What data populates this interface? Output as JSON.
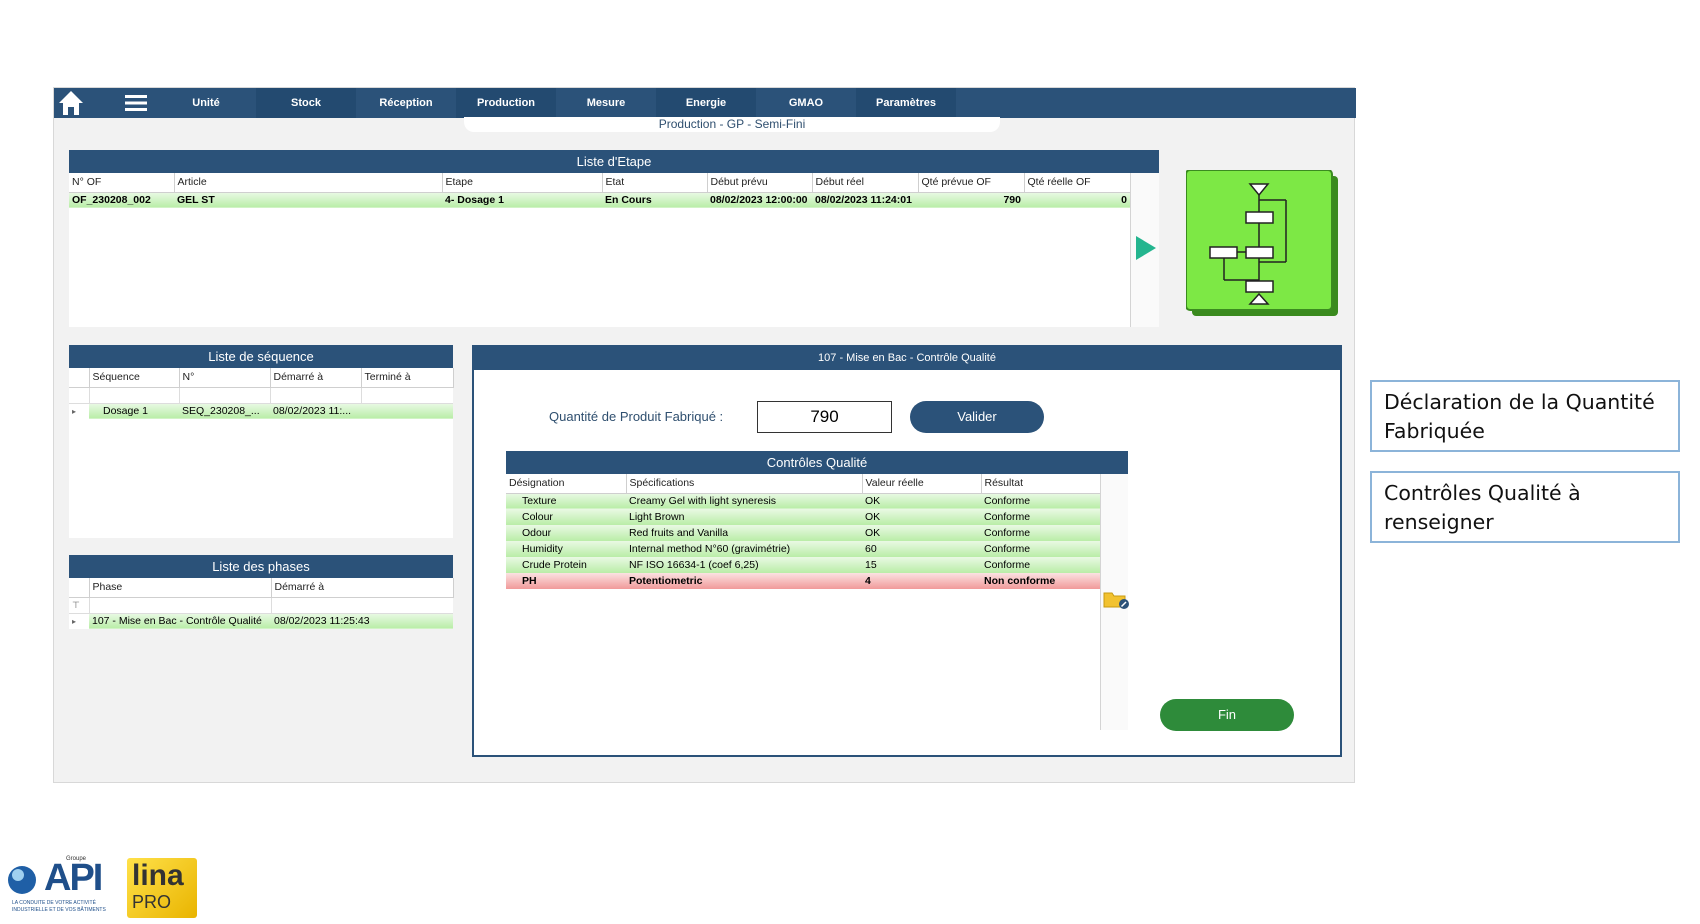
{
  "nav": {
    "items": [
      "Unité",
      "Stock",
      "Réception",
      "Production",
      "Mesure",
      "Energie",
      "GMAO",
      "Paramètres"
    ]
  },
  "subtitle": "Production - GP - Semi-Fini",
  "etape": {
    "title": "Liste d'Etape",
    "columns": [
      "N° OF",
      "Article",
      "Etape",
      "Etat",
      "Début prévu",
      "Début réel",
      "Qté prévue OF",
      "Qté réelle OF"
    ],
    "row": {
      "of": "OF_230208_002",
      "article": "GEL ST",
      "etape": "4- Dosage 1",
      "etat": "En Cours",
      "debut_prevu": "08/02/2023 12:00:00",
      "debut_reel": "08/02/2023 11:24:01",
      "qte_prevue": "790",
      "qte_reelle": "0"
    }
  },
  "sequence": {
    "title": "Liste de séquence",
    "columns": [
      "Séquence",
      "N°",
      "Démarré à",
      "Terminé à"
    ],
    "row": {
      "sequence": "Dosage 1",
      "numero": "SEQ_230208_...",
      "demarre": "08/02/2023 11:...",
      "termine": ""
    }
  },
  "phases": {
    "title": "Liste des phases",
    "columns": [
      "Phase",
      "Démarré à"
    ],
    "row": {
      "phase": "107 - Mise en Bac - Contrôle Qualité",
      "demarre": "08/02/2023 11:25:43"
    }
  },
  "control": {
    "title": "107 - Mise en Bac - Contrôle Qualité",
    "qty_label": "Quantité de Produit Fabriqué :",
    "qty_value": "790",
    "valider": "Valider",
    "qc_title": "Contrôles Qualité",
    "qc_columns": [
      "Désignation",
      "Spécifications",
      "Valeur réelle",
      "Résultat"
    ],
    "qc_rows": [
      {
        "designation": "Texture",
        "spec": "Creamy Gel with light syneresis",
        "valeur": "OK",
        "resultat": "Conforme",
        "status": "ok"
      },
      {
        "designation": "Colour",
        "spec": "Light Brown",
        "valeur": "OK",
        "resultat": "Conforme",
        "status": "ok"
      },
      {
        "designation": "Odour",
        "spec": "Red fruits and Vanilla",
        "valeur": "OK",
        "resultat": "Conforme",
        "status": "ok"
      },
      {
        "designation": "Humidity",
        "spec": "Internal method N°60 (gravimétrie)",
        "valeur": "60",
        "resultat": "Conforme",
        "status": "ok"
      },
      {
        "designation": "Crude Protein",
        "spec": "NF ISO 16634-1 (coef 6,25)",
        "valeur": "15",
        "resultat": "Conforme",
        "status": "ok"
      },
      {
        "designation": "PH",
        "spec": "Potentiometric",
        "valeur": "4",
        "resultat": "Non conforme",
        "status": "nok"
      }
    ],
    "fin": "Fin"
  },
  "annotations": {
    "box1": "Déclaration de la Quantité Fabriquée",
    "box2": "Contrôles Qualité à renseigner"
  },
  "logos": {
    "api_groupe": "Groupe",
    "api_text": "API",
    "api_tagline_1": "LA CONDUITE DE VOTRE ACTIVITÉ",
    "api_tagline_2": "INDUSTRIELLE ET DE VOS BÂTIMENTS",
    "lina_text": "lina",
    "lina_pro": "PRO"
  },
  "colors": {
    "header_blue": "#2b5279",
    "ok_green": "#b9eda7",
    "nok_red": "#f19a9a",
    "button_green": "#2e8b3a"
  },
  "icons": {
    "home": "home-icon",
    "menu": "hamburger-menu-icon",
    "play": "play-arrow-icon",
    "flowchart": "flowchart-icon",
    "folder": "folder-edit-icon"
  }
}
